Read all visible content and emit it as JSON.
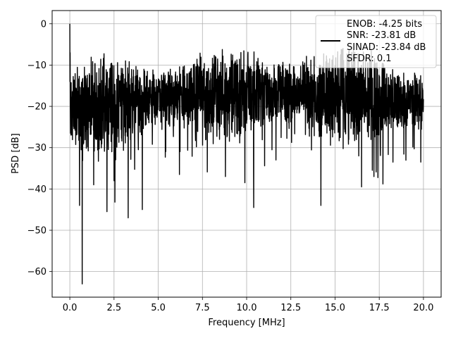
{
  "chart_data": {
    "type": "line",
    "title": "",
    "xlabel": "Frequency [MHz]",
    "ylabel": "PSD [dB]",
    "xlim": [
      -1.0,
      21.0
    ],
    "ylim": [
      -66.2,
      3.2
    ],
    "xticks": [
      0.0,
      2.5,
      5.0,
      7.5,
      10.0,
      12.5,
      15.0,
      17.5,
      20.0
    ],
    "xtick_labels": [
      "0.0",
      "2.5",
      "5.0",
      "7.5",
      "10.0",
      "12.5",
      "15.0",
      "17.5",
      "20.0"
    ],
    "yticks": [
      0,
      -10,
      -20,
      -30,
      -40,
      -50,
      -60
    ],
    "ytick_labels": [
      "0",
      "−10",
      "−20",
      "−30",
      "−40",
      "−50",
      "−60"
    ],
    "grid": true,
    "legend_position": "top-right",
    "series": [
      {
        "name": "ENOB: -4.25 bits\nSNR: -23.81 dB\nSINAD: -23.84 dB\nSFDR: 0.1",
        "color": "#000000",
        "description": "noisy PSD trace",
        "x_range": [
          0.0,
          20.0
        ],
        "peak": [
          0.0,
          0.0
        ],
        "envelope_upper_db": -6,
        "envelope_lower_db": -32,
        "spikes": [
          [
            0.7,
            -63
          ],
          [
            0.55,
            -44
          ],
          [
            2.1,
            -45.5
          ],
          [
            3.3,
            -47
          ],
          [
            4.1,
            -45
          ],
          [
            10.4,
            -44.5
          ],
          [
            14.2,
            -44
          ],
          [
            16.5,
            -39.5
          ],
          [
            1.35,
            -39
          ],
          [
            2.5,
            -38
          ],
          [
            6.2,
            -36.5
          ],
          [
            8.8,
            -37
          ],
          [
            9.9,
            -38.5
          ],
          [
            17.2,
            -37
          ]
        ]
      }
    ],
    "legend_lines": [
      "ENOB: -4.25 bits",
      "SNR: -23.81 dB",
      "SINAD: -23.84 dB",
      "SFDR: 0.1"
    ]
  }
}
